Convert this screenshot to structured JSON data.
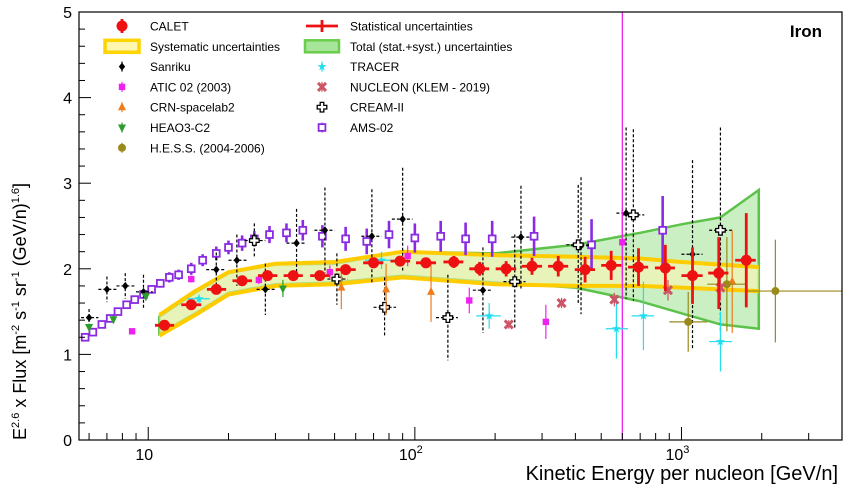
{
  "chart_data": {
    "type": "scatter",
    "title": "Iron",
    "xlabel": "Kinetic Energy per nucleon [GeV/n]",
    "ylabel": {
      "base": "E",
      "base_exp": "2.6",
      "mid": " x Flux [m",
      "e1": "-2",
      "s": " s",
      "e2": "-1",
      "sr": " sr",
      "e3": "-1",
      "tail": " (GeV/n)",
      "e4": "1.6",
      "close": "]"
    },
    "x_scale": "log",
    "xlim": [
      5.5,
      4000
    ],
    "ylim": [
      0,
      5
    ],
    "x_ticks": [
      {
        "value": 10,
        "label": "10",
        "exp": ""
      },
      {
        "value": 100,
        "label": "10",
        "exp": "2"
      },
      {
        "value": 1000,
        "label": "10",
        "exp": "3"
      }
    ],
    "y_ticks": [
      {
        "value": 0,
        "label": "0"
      },
      {
        "value": 1,
        "label": "1"
      },
      {
        "value": 2,
        "label": "2"
      },
      {
        "value": 3,
        "label": "3"
      },
      {
        "value": 4,
        "label": "4"
      },
      {
        "value": 5,
        "label": "5"
      }
    ],
    "grid": false,
    "legend_position": "top-left",
    "legend": [
      {
        "label": "CALET",
        "marker": "calet",
        "color": "#ee1111"
      },
      {
        "label": "Systematic uncertainties",
        "marker": "syst-band",
        "color": "#ffd400"
      },
      {
        "label": "Sanriku",
        "marker": "diamond",
        "color": "#000000"
      },
      {
        "label": "ATIC 02 (2003)",
        "marker": "square",
        "color": "#ee22ee"
      },
      {
        "label": "CRN-spacelab2",
        "marker": "triangle-up",
        "color": "#f07d1a"
      },
      {
        "label": "HEAO3-C2",
        "marker": "triangle-down",
        "color": "#2a9d2a"
      },
      {
        "label": "H.E.S.S. (2004-2006)",
        "marker": "circle",
        "color": "#9a8a1a"
      },
      {
        "label": "Statistical uncertainties",
        "marker": "stat-bar",
        "color": "#ee1111"
      },
      {
        "label": "Total (stat.+syst.) uncertainties",
        "marker": "total-band",
        "color": "#6ccc4c"
      },
      {
        "label": "TRACER",
        "marker": "star",
        "color": "#22ddee"
      },
      {
        "label": "NUCLEON (KLEM - 2019)",
        "marker": "cross",
        "color": "#cc5566"
      },
      {
        "label": "CREAM-II",
        "marker": "open-cross",
        "color": "#000000"
      },
      {
        "label": "AMS-02",
        "marker": "open-square",
        "color": "#8a2be2"
      }
    ],
    "vertical_line": {
      "x": 600,
      "color": "#ee22ee"
    },
    "series": [
      {
        "name": "CALET",
        "color": "#ee1111",
        "marker": "calet",
        "points": [
          {
            "x": 11.5,
            "y": 1.34,
            "xlo": 10.6,
            "xhi": 12.5,
            "err": 0.02
          },
          {
            "x": 14.5,
            "y": 1.58,
            "xlo": 13.3,
            "xhi": 15.8,
            "err": 0.02
          },
          {
            "x": 18.0,
            "y": 1.76,
            "xlo": 16.6,
            "xhi": 19.6,
            "err": 0.03
          },
          {
            "x": 22.5,
            "y": 1.86,
            "xlo": 20.7,
            "xhi": 24.5,
            "err": 0.03
          },
          {
            "x": 28.0,
            "y": 1.92,
            "xlo": 25.8,
            "xhi": 30.5,
            "err": 0.03
          },
          {
            "x": 35.0,
            "y": 1.92,
            "xlo": 32.2,
            "xhi": 38.0,
            "err": 0.03
          },
          {
            "x": 44.0,
            "y": 1.92,
            "xlo": 40.5,
            "xhi": 48.0,
            "err": 0.03
          },
          {
            "x": 55.0,
            "y": 1.99,
            "xlo": 50.5,
            "xhi": 60.0,
            "err": 0.04
          },
          {
            "x": 70.0,
            "y": 2.07,
            "xlo": 64.0,
            "xhi": 76.0,
            "err": 0.05
          },
          {
            "x": 88.0,
            "y": 2.09,
            "xlo": 81.0,
            "xhi": 96.0,
            "err": 0.06
          },
          {
            "x": 110.0,
            "y": 2.07,
            "xlo": 101.0,
            "xhi": 120.0,
            "err": 0.06
          },
          {
            "x": 140.0,
            "y": 2.08,
            "xlo": 128.0,
            "xhi": 152.0,
            "err": 0.07
          },
          {
            "x": 175.0,
            "y": 2.0,
            "xlo": 160.0,
            "xhi": 190.0,
            "err": 0.08
          },
          {
            "x": 220.0,
            "y": 2.0,
            "xlo": 201.0,
            "xhi": 240.0,
            "err": 0.09
          },
          {
            "x": 275.0,
            "y": 2.03,
            "xlo": 252.0,
            "xhi": 300.0,
            "err": 0.1
          },
          {
            "x": 345.0,
            "y": 2.03,
            "xlo": 316.0,
            "xhi": 376.0,
            "err": 0.12
          },
          {
            "x": 435.0,
            "y": 1.99,
            "xlo": 398.0,
            "xhi": 474.0,
            "err": 0.15
          },
          {
            "x": 545.0,
            "y": 2.04,
            "xlo": 500.0,
            "xhi": 595.0,
            "err": 0.17
          },
          {
            "x": 690.0,
            "y": 2.02,
            "xlo": 630.0,
            "xhi": 750.0,
            "err": 0.22
          },
          {
            "x": 870.0,
            "y": 2.01,
            "xlo": 795.0,
            "xhi": 945.0,
            "err": 0.27
          },
          {
            "x": 1100.0,
            "y": 1.92,
            "xlo": 1000.0,
            "xhi": 1200.0,
            "err": 0.33
          },
          {
            "x": 1380.0,
            "y": 1.95,
            "xlo": 1260.0,
            "xhi": 1500.0,
            "err": 0.42
          },
          {
            "x": 1750.0,
            "y": 2.1,
            "xlo": 1590.0,
            "xhi": 1900.0,
            "err": 0.55
          }
        ]
      },
      {
        "name": "Sanriku",
        "color": "#000000",
        "marker": "diamond",
        "points": [
          {
            "x": 6.0,
            "y": 1.43,
            "xlo": 5.6,
            "xhi": 6.5,
            "err": 0.1
          },
          {
            "x": 7.0,
            "y": 1.76,
            "xlo": 6.5,
            "xhi": 7.6,
            "err": 0.15
          },
          {
            "x": 8.2,
            "y": 1.8,
            "xlo": 7.6,
            "xhi": 9.0,
            "err": 0.15
          },
          {
            "x": 9.6,
            "y": 1.73,
            "xlo": 9.0,
            "xhi": 10.4,
            "err": 0.2
          },
          {
            "x": 18.0,
            "y": 1.99,
            "xlo": 16.5,
            "xhi": 19.5,
            "err": 0.2
          },
          {
            "x": 21.5,
            "y": 2.1,
            "xlo": 20.0,
            "xhi": 23.5,
            "err": 0.3
          },
          {
            "x": 27.5,
            "y": 1.76,
            "xlo": 25.5,
            "xhi": 30.0,
            "err": 0.3
          },
          {
            "x": 36.0,
            "y": 2.3,
            "xlo": 33.0,
            "xhi": 39.0,
            "err": 0.4
          },
          {
            "x": 46.0,
            "y": 2.45,
            "xlo": 42.0,
            "xhi": 50.0,
            "err": 0.5
          },
          {
            "x": 69.0,
            "y": 2.38,
            "xlo": 63.0,
            "xhi": 75.0,
            "err": 0.55
          },
          {
            "x": 90.0,
            "y": 2.58,
            "xlo": 82.0,
            "xhi": 98.0,
            "err": 0.6
          },
          {
            "x": 180.0,
            "y": 1.75,
            "xlo": 165.0,
            "xhi": 195.0,
            "err": 0.5
          },
          {
            "x": 250.0,
            "y": 2.37,
            "xlo": 230.0,
            "xhi": 272.0,
            "err": 0.6
          },
          {
            "x": 420.0,
            "y": 2.27,
            "xlo": 385.0,
            "xhi": 455.0,
            "err": 0.8
          },
          {
            "x": 620.0,
            "y": 2.65,
            "xlo": 570.0,
            "xhi": 675.0,
            "err": 1.0
          },
          {
            "x": 1100.0,
            "y": 2.17,
            "xlo": 1000.0,
            "xhi": 1200.0,
            "err": 1.1
          }
        ]
      },
      {
        "name": "ATIC 02 (2003)",
        "color": "#ee22ee",
        "marker": "square",
        "points": [
          {
            "x": 8.7,
            "y": 1.27,
            "err": 0.02
          },
          {
            "x": 14.5,
            "y": 1.88,
            "err": 0.04
          },
          {
            "x": 26.0,
            "y": 1.87,
            "err": 0.05
          },
          {
            "x": 48.0,
            "y": 1.96,
            "err": 0.08
          },
          {
            "x": 94.0,
            "y": 2.15,
            "err": 0.12
          },
          {
            "x": 160.0,
            "y": 1.63,
            "err": 0.15
          },
          {
            "x": 310.0,
            "y": 1.38,
            "err": 0.2
          },
          {
            "x": 600.0,
            "y": 2.31,
            "err": 0.4
          }
        ]
      },
      {
        "name": "CRN-spacelab2",
        "color": "#f07d1a",
        "marker": "triangle-up",
        "points": [
          {
            "x": 53.0,
            "y": 1.78,
            "err": 0.25
          },
          {
            "x": 78.0,
            "y": 1.76,
            "err": 0.3
          },
          {
            "x": 115.0,
            "y": 1.73,
            "err": 0.35
          },
          {
            "x": 1550.0,
            "y": 1.85,
            "err": 0.6
          }
        ]
      },
      {
        "name": "HEAO3-C2",
        "color": "#2a9d2a",
        "marker": "triangle-down",
        "points": [
          {
            "x": 6.0,
            "y": 1.32,
            "err": 0.04
          },
          {
            "x": 7.4,
            "y": 1.41,
            "err": 0.04
          },
          {
            "x": 9.8,
            "y": 1.68,
            "err": 0.05
          },
          {
            "x": 32.0,
            "y": 1.77,
            "err": 0.1
          }
        ]
      },
      {
        "name": "H.E.S.S. (2004-2006)",
        "color": "#9a8a1a",
        "marker": "circle",
        "points": [
          {
            "x": 1060.0,
            "y": 1.38,
            "xlo": 900.0,
            "xhi": 1250.0,
            "err": 0.35
          },
          {
            "x": 1480.0,
            "y": 1.82,
            "xlo": 1250.0,
            "xhi": 1750.0,
            "err": 0.55
          },
          {
            "x": 2250.0,
            "y": 1.74,
            "xlo": 1750.0,
            "xhi": 4000.0,
            "err": 0.6
          }
        ]
      },
      {
        "name": "TRACER",
        "color": "#22ddee",
        "marker": "star",
        "points": [
          {
            "x": 15.5,
            "y": 1.65,
            "xlo": 14.0,
            "xhi": 17.0,
            "err": 0.05
          },
          {
            "x": 75.0,
            "y": 2.1,
            "xlo": 65.0,
            "xhi": 85.0,
            "err": 0.1
          },
          {
            "x": 190.0,
            "y": 1.45,
            "xlo": 170.0,
            "xhi": 210.0,
            "err": 0.15
          },
          {
            "x": 570.0,
            "y": 1.3,
            "xlo": 520.0,
            "xhi": 630.0,
            "err": 0.35
          },
          {
            "x": 720.0,
            "y": 1.45,
            "xlo": 650.0,
            "xhi": 790.0,
            "err": 0.4
          },
          {
            "x": 1400.0,
            "y": 1.15,
            "xlo": 1270.0,
            "xhi": 1550.0,
            "err": 0.35
          }
        ]
      },
      {
        "name": "NUCLEON (KLEM - 2019)",
        "color": "#cc5566",
        "marker": "cross",
        "points": [
          {
            "x": 225.0,
            "y": 1.35,
            "err": 0.05
          },
          {
            "x": 355.0,
            "y": 1.6,
            "err": 0.06
          },
          {
            "x": 560.0,
            "y": 1.64,
            "err": 0.08
          },
          {
            "x": 890.0,
            "y": 1.75,
            "err": 0.12
          },
          {
            "x": 1400.0,
            "y": 1.78,
            "err": 0.15
          }
        ]
      },
      {
        "name": "CREAM-II",
        "color": "#000000",
        "marker": "open-cross",
        "points": [
          {
            "x": 25.0,
            "y": 2.33,
            "xlo": 23.0,
            "xhi": 27.5,
            "err": 0.2
          },
          {
            "x": 51.0,
            "y": 1.88,
            "xlo": 47.0,
            "xhi": 56.0,
            "err": 0.3
          },
          {
            "x": 77.0,
            "y": 1.55,
            "xlo": 70.0,
            "xhi": 85.0,
            "err": 0.35
          },
          {
            "x": 133.0,
            "y": 1.43,
            "xlo": 120.0,
            "xhi": 145.0,
            "err": 0.5
          },
          {
            "x": 237.0,
            "y": 1.85,
            "xlo": 215.0,
            "xhi": 260.0,
            "err": 0.55
          },
          {
            "x": 410.0,
            "y": 2.28,
            "xlo": 370.0,
            "xhi": 450.0,
            "err": 0.7
          },
          {
            "x": 660.0,
            "y": 2.63,
            "xlo": 600.0,
            "xhi": 725.0,
            "err": 1.0
          },
          {
            "x": 1400.0,
            "y": 2.45,
            "xlo": 1270.0,
            "xhi": 1550.0,
            "err": 1.2
          }
        ]
      },
      {
        "name": "AMS-02",
        "color": "#8a2be2",
        "marker": "open-square",
        "points": [
          {
            "x": 5.8,
            "y": 1.2,
            "err": 0.03
          },
          {
            "x": 6.2,
            "y": 1.26,
            "err": 0.03
          },
          {
            "x": 6.7,
            "y": 1.35,
            "err": 0.03
          },
          {
            "x": 7.2,
            "y": 1.42,
            "err": 0.03
          },
          {
            "x": 7.7,
            "y": 1.5,
            "err": 0.04
          },
          {
            "x": 8.3,
            "y": 1.58,
            "err": 0.04
          },
          {
            "x": 8.9,
            "y": 1.64,
            "err": 0.04
          },
          {
            "x": 9.6,
            "y": 1.7,
            "err": 0.05
          },
          {
            "x": 10.3,
            "y": 1.76,
            "err": 0.05
          },
          {
            "x": 11.1,
            "y": 1.83,
            "err": 0.05
          },
          {
            "x": 12.0,
            "y": 1.9,
            "err": 0.06
          },
          {
            "x": 13.0,
            "y": 1.93,
            "err": 0.06
          },
          {
            "x": 14.5,
            "y": 2.0,
            "err": 0.07
          },
          {
            "x": 16.0,
            "y": 2.1,
            "err": 0.07
          },
          {
            "x": 18.0,
            "y": 2.18,
            "err": 0.08
          },
          {
            "x": 20.0,
            "y": 2.25,
            "err": 0.08
          },
          {
            "x": 22.5,
            "y": 2.3,
            "err": 0.09
          },
          {
            "x": 25.0,
            "y": 2.35,
            "err": 0.09
          },
          {
            "x": 28.5,
            "y": 2.4,
            "err": 0.1
          },
          {
            "x": 33.0,
            "y": 2.42,
            "err": 0.11
          },
          {
            "x": 38.0,
            "y": 2.45,
            "err": 0.12
          },
          {
            "x": 45.0,
            "y": 2.38,
            "err": 0.13
          },
          {
            "x": 55.0,
            "y": 2.35,
            "err": 0.14
          },
          {
            "x": 66.0,
            "y": 2.32,
            "err": 0.15
          },
          {
            "x": 80.0,
            "y": 2.4,
            "err": 0.16
          },
          {
            "x": 100.0,
            "y": 2.36,
            "err": 0.17
          },
          {
            "x": 125.0,
            "y": 2.38,
            "err": 0.18
          },
          {
            "x": 155.0,
            "y": 2.35,
            "err": 0.19
          },
          {
            "x": 195.0,
            "y": 2.35,
            "err": 0.21
          },
          {
            "x": 280.0,
            "y": 2.38,
            "err": 0.23
          },
          {
            "x": 460.0,
            "y": 2.28,
            "err": 0.3
          },
          {
            "x": 850.0,
            "y": 2.45,
            "err": 0.4
          }
        ]
      }
    ],
    "bands": {
      "total": [
        {
          "x": 11.0,
          "lo": 1.24,
          "hi": 1.44
        },
        {
          "x": 15.0,
          "lo": 1.48,
          "hi": 1.72
        },
        {
          "x": 20.0,
          "lo": 1.72,
          "hi": 1.95
        },
        {
          "x": 30.0,
          "lo": 1.82,
          "hi": 2.05
        },
        {
          "x": 50.0,
          "lo": 1.84,
          "hi": 2.06
        },
        {
          "x": 90.0,
          "lo": 1.92,
          "hi": 2.2
        },
        {
          "x": 200.0,
          "lo": 1.84,
          "hi": 2.18
        },
        {
          "x": 400.0,
          "lo": 1.78,
          "hi": 2.28
        },
        {
          "x": 700.0,
          "lo": 1.62,
          "hi": 2.42
        },
        {
          "x": 1000.0,
          "lo": 1.48,
          "hi": 2.52
        },
        {
          "x": 1400.0,
          "lo": 1.35,
          "hi": 2.6
        },
        {
          "x": 1950.0,
          "lo": 1.3,
          "hi": 2.92
        }
      ],
      "systematic": [
        {
          "x": 11.0,
          "lo": 1.22,
          "hi": 1.46
        },
        {
          "x": 15.0,
          "lo": 1.46,
          "hi": 1.74
        },
        {
          "x": 20.0,
          "lo": 1.7,
          "hi": 1.96
        },
        {
          "x": 30.0,
          "lo": 1.8,
          "hi": 2.06
        },
        {
          "x": 50.0,
          "lo": 1.82,
          "hi": 2.08
        },
        {
          "x": 90.0,
          "lo": 1.9,
          "hi": 2.2
        },
        {
          "x": 200.0,
          "lo": 1.82,
          "hi": 2.16
        },
        {
          "x": 400.0,
          "lo": 1.8,
          "hi": 2.14
        },
        {
          "x": 700.0,
          "lo": 1.8,
          "hi": 2.12
        },
        {
          "x": 1000.0,
          "lo": 1.78,
          "hi": 2.08
        },
        {
          "x": 1950.0,
          "lo": 1.74,
          "hi": 2.02
        }
      ]
    }
  }
}
